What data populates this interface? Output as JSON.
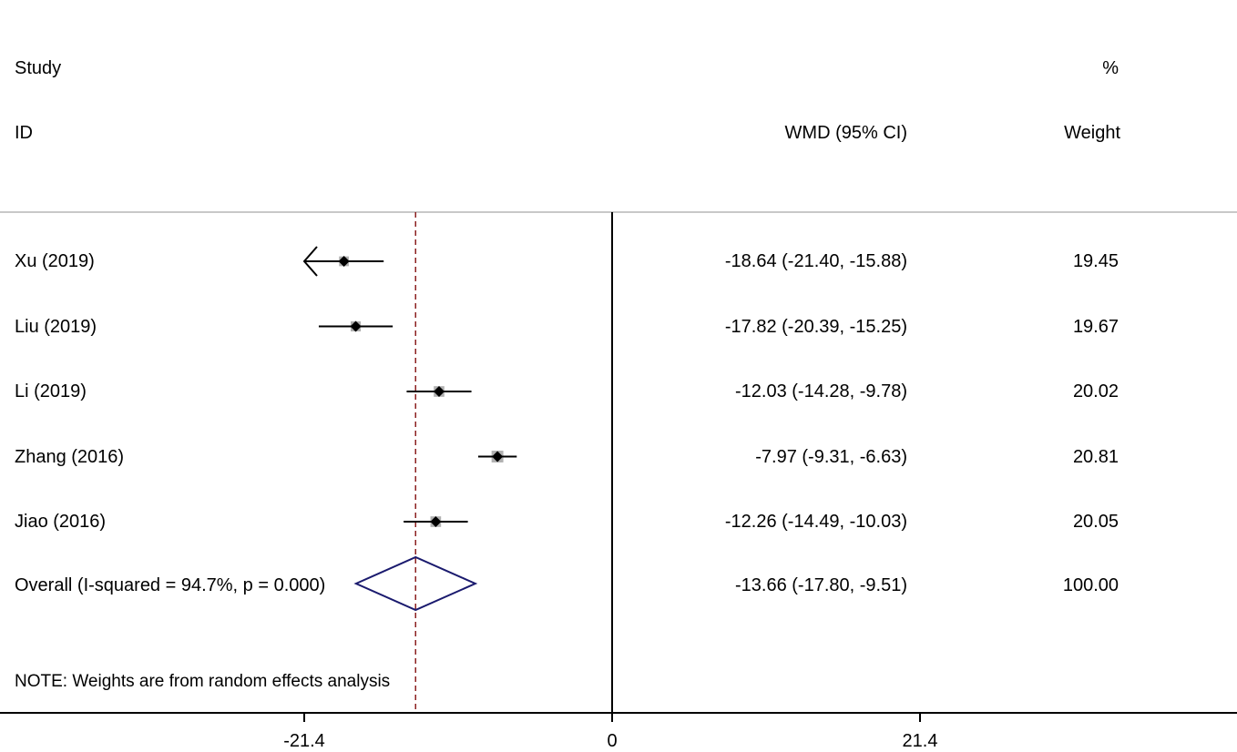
{
  "header": {
    "study_line1": "Study",
    "study_line2": "ID",
    "effect_label": "WMD (95% CI)",
    "weight_line1": "%",
    "weight_line2": "Weight"
  },
  "chart_data": {
    "type": "forest",
    "effect_measure": "WMD",
    "x_ticks": [
      -21.4,
      0,
      21.4
    ],
    "x_tick_labels": [
      "-21.4",
      "0",
      "21.4"
    ],
    "xlim": [
      -42.8,
      42.8
    ],
    "null_line": 0,
    "overall_line": -13.66,
    "studies": [
      {
        "name": "Xu (2019)",
        "est": -18.64,
        "lo": -21.4,
        "hi": -15.88,
        "ci_text": "-18.64 (-21.40, -15.88)",
        "weight": "19.45",
        "arrow_left": true
      },
      {
        "name": "Liu (2019)",
        "est": -17.82,
        "lo": -20.39,
        "hi": -15.25,
        "ci_text": "-17.82 (-20.39, -15.25)",
        "weight": "19.67",
        "arrow_left": false
      },
      {
        "name": "Li (2019)",
        "est": -12.03,
        "lo": -14.28,
        "hi": -9.78,
        "ci_text": "-12.03 (-14.28, -9.78)",
        "weight": "20.02",
        "arrow_left": false
      },
      {
        "name": "Zhang (2016)",
        "est": -7.97,
        "lo": -9.31,
        "hi": -6.63,
        "ci_text": "-7.97 (-9.31, -6.63)",
        "weight": "20.81",
        "arrow_left": false
      },
      {
        "name": "Jiao (2016)",
        "est": -12.26,
        "lo": -14.49,
        "hi": -10.03,
        "ci_text": "-12.26 (-14.49, -10.03)",
        "weight": "20.05",
        "arrow_left": false
      }
    ],
    "overall": {
      "label": "Overall  (I-squared = 94.7%, p = 0.000)",
      "est": -13.66,
      "lo": -17.8,
      "hi": -9.51,
      "ci_text": "-13.66 (-17.80, -9.51)",
      "weight": "100.00"
    },
    "note": "NOTE: Weights are from random effects analysis",
    "colors": {
      "ci_line": "#000000",
      "square": "#b0b0b0",
      "diamond": "#1a1a6e",
      "overall_line": "#8b2020",
      "separator": "#c8c8c8"
    }
  }
}
